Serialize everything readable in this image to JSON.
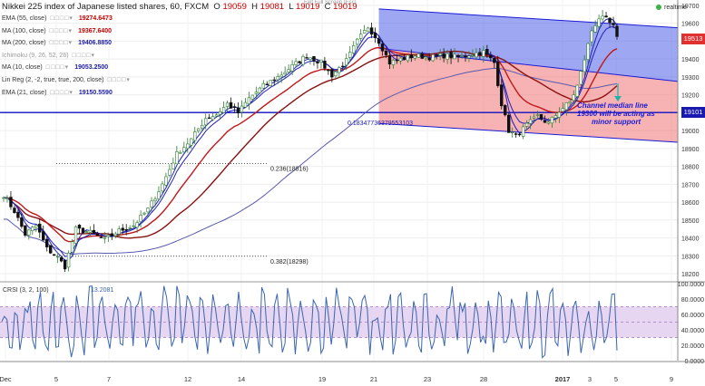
{
  "header": {
    "title": "Nikkei 225 index of Japanese listed shares, 60, FXCM",
    "o_label": "O",
    "o": "19059",
    "h_label": "H",
    "h": "19081",
    "l_label": "L",
    "l": "19019",
    "c_label": "C",
    "c": "19019"
  },
  "top_strip_text": "Exit Full Screen (Esc)",
  "realtime_label": "realtime",
  "indicators": [
    {
      "label": "EMA (55, close)",
      "value": "19274.6473",
      "color": "#c00000"
    },
    {
      "label": "MA (100, close)",
      "value": "19367.6400",
      "color": "#c00000"
    },
    {
      "label": "MA (200, close)",
      "value": "19406.8850",
      "color": "#1a1aa6"
    },
    {
      "label": "Ichimoku (9, 26, 52, 26)",
      "value": "",
      "color": "#999999"
    },
    {
      "label": "MA (10, close)",
      "value": "19053.2500",
      "color": "#1a1aa6"
    },
    {
      "label": "Lin Reg (2, -2, true, true, 200, close)",
      "value": "",
      "color": "#333333"
    },
    {
      "label": "EMA (21, close)",
      "value": "19150.5590",
      "color": "#1a1aa6"
    }
  ],
  "price_tags": [
    {
      "text": "19513",
      "color": "#e03030",
      "price": 19513
    },
    {
      "text": "19101",
      "color": "#1a1ab0",
      "price": 19101
    }
  ],
  "annotations": {
    "fib_236": "0.236(18816)",
    "fib_382": "0.382(18298)",
    "linreg_value": "0.18347736379553103",
    "median_note_line1": "Channel median line",
    "median_note_line2": "19300 will be acting as",
    "median_note_line3": "minor support"
  },
  "colors": {
    "up_candle": "#2e7d32",
    "down_candle": "#111111",
    "channel_upper_fill": "#4f5fe6",
    "channel_lower_fill": "#f28080",
    "channel_line": "#1a1ad6",
    "horizontal_line": "#1010c0",
    "ema55": "#c01818",
    "ma100": "#8b1010",
    "ma200": "#5a5ab0",
    "ma10": "#2020c0",
    "ema21": "#2020c0",
    "crsi_line": "#3a66b0",
    "crsi_band": "#e6d6f2"
  },
  "chart_data": [
    {
      "type": "candlestick",
      "title": "Nikkei 225 index of Japanese listed shares, 60, FXCM",
      "x_ticks": [
        "Dec",
        "5",
        "7",
        "12",
        "14",
        "19",
        "21",
        "23",
        "28",
        "2017",
        "3",
        "5",
        "9"
      ],
      "y_ticks": [
        "19700",
        "19600",
        "19500",
        "19400",
        "19300",
        "19200",
        "19100",
        "19000",
        "18900",
        "18800",
        "18700",
        "18600",
        "18500",
        "18400",
        "18300",
        "18200"
      ],
      "ylim": [
        18160,
        19730
      ],
      "close_path": [
        [
          0,
          18640
        ],
        [
          3,
          18550
        ],
        [
          6,
          18420
        ],
        [
          9,
          18470
        ],
        [
          12,
          18340
        ],
        [
          15,
          18290
        ],
        [
          17,
          18240
        ],
        [
          20,
          18450
        ],
        [
          24,
          18430
        ],
        [
          28,
          18390
        ],
        [
          32,
          18440
        ],
        [
          36,
          18470
        ],
        [
          40,
          18560
        ],
        [
          44,
          18700
        ],
        [
          48,
          18870
        ],
        [
          52,
          18950
        ],
        [
          56,
          19070
        ],
        [
          59,
          19090
        ],
        [
          62,
          19150
        ],
        [
          65,
          19100
        ],
        [
          68,
          19180
        ],
        [
          72,
          19250
        ],
        [
          76,
          19300
        ],
        [
          80,
          19360
        ],
        [
          84,
          19420
        ],
        [
          88,
          19380
        ],
        [
          91,
          19310
        ],
        [
          95,
          19390
        ],
        [
          98,
          19500
        ],
        [
          101,
          19580
        ],
        [
          104,
          19500
        ],
        [
          107,
          19380
        ],
        [
          110,
          19400
        ],
        [
          114,
          19420
        ],
        [
          118,
          19410
        ],
        [
          122,
          19420
        ],
        [
          126,
          19410
        ],
        [
          130,
          19430
        ],
        [
          133,
          19440
        ],
        [
          136,
          19380
        ],
        [
          138,
          19150
        ],
        [
          140,
          19000
        ],
        [
          142,
          18970
        ],
        [
          145,
          19030
        ],
        [
          148,
          19080
        ],
        [
          151,
          19040
        ],
        [
          154,
          19110
        ],
        [
          157,
          19160
        ],
        [
          159,
          19250
        ],
        [
          161,
          19400
        ],
        [
          163,
          19560
        ],
        [
          165,
          19630
        ],
        [
          167,
          19620
        ],
        [
          169,
          19580
        ],
        [
          170,
          19513
        ]
      ],
      "series": [
        {
          "name": "EMA (55, close)",
          "last": 19274.6473
        },
        {
          "name": "MA (100, close)",
          "last": 19367.64
        },
        {
          "name": "MA (200, close)",
          "last": 19406.885
        },
        {
          "name": "MA (10, close)",
          "last": 19053.25
        },
        {
          "name": "EMA (21, close)",
          "last": 19150.559
        }
      ],
      "levels": [
        {
          "label": "0.236(18816)",
          "price": 18816
        },
        {
          "label": "0.382(18298)",
          "price": 18298
        },
        {
          "label": "horizontal",
          "price": 19101
        }
      ],
      "channel": {
        "x_range": [
          104,
          170
        ],
        "upper": [
          19680,
          19600
        ],
        "median": [
          19460,
          19300
        ],
        "lower": [
          19040,
          18960
        ]
      }
    },
    {
      "type": "line",
      "title": "CRSI (3, 2, 100)",
      "last_value": "13.2081",
      "y_ticks": [
        "100.0000",
        "80.0000",
        "60.0000",
        "40.0000",
        "20.0000",
        "0.0000"
      ],
      "ylim": [
        0,
        100
      ],
      "band": [
        30,
        70
      ],
      "samples": 240
    }
  ]
}
